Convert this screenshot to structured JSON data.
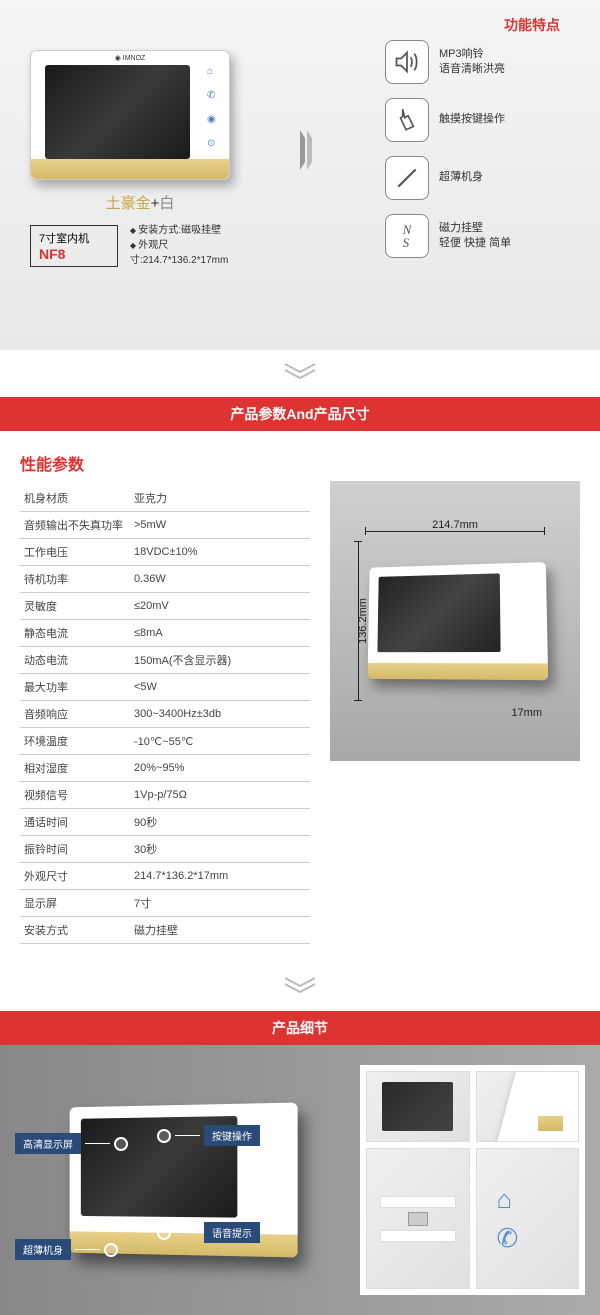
{
  "section1": {
    "features_title": "功能特点",
    "color_gold": "土豪金",
    "color_plus": "+",
    "color_white": "白",
    "model_prefix": "7寸室内机",
    "model": "NF8",
    "spec1": "安装方式:磁吸挂壁",
    "spec2": "外观尺寸:214.7*136.2*17mm",
    "feat1_l1": "MP3响铃",
    "feat1_l2": "语音清晰洪亮",
    "feat2": "触摸按键操作",
    "feat3": "超薄机身",
    "feat4_l1": "磁力挂壁",
    "feat4_l2": "轻便 快捷 简单",
    "icon_ns": "N\nS"
  },
  "banner1": "产品参数And产品尺寸",
  "specs": {
    "title": "性能参数",
    "rows": [
      [
        "机身材质",
        "亚克力"
      ],
      [
        "音频输出不失真功率",
        ">5mW"
      ],
      [
        "工作电压",
        "18VDC±10%"
      ],
      [
        "待机功率",
        "0.36W"
      ],
      [
        "灵敏度",
        "≤20mV"
      ],
      [
        "静态电流",
        "≤8mA"
      ],
      [
        "动态电流",
        "150mA(不含显示器)"
      ],
      [
        "最大功率",
        "<5W"
      ],
      [
        "音频响应",
        "300~3400Hz±3db"
      ],
      [
        "环境温度",
        "-10℃~55℃"
      ],
      [
        "相对湿度",
        "20%~95%"
      ],
      [
        "视频信号",
        "1Vp-p/75Ω"
      ],
      [
        "通话时间",
        "90秒"
      ],
      [
        "振铃时间",
        "30秒"
      ],
      [
        "外观尺寸",
        "214.7*136.2*17mm"
      ],
      [
        "显示屏",
        "7寸"
      ],
      [
        "安装方式",
        "磁力挂壁"
      ]
    ]
  },
  "dims": {
    "w": "214.7mm",
    "h": "136.2mm",
    "d": "17mm"
  },
  "banner2": "产品细节",
  "callouts": {
    "c1": "高清显示屏",
    "c2": "超薄机身",
    "c3": "按键操作",
    "c4": "语音提示"
  },
  "colors": {
    "accent": "#d33",
    "gold": "#d4b968",
    "blue": "#2a4a7a"
  }
}
